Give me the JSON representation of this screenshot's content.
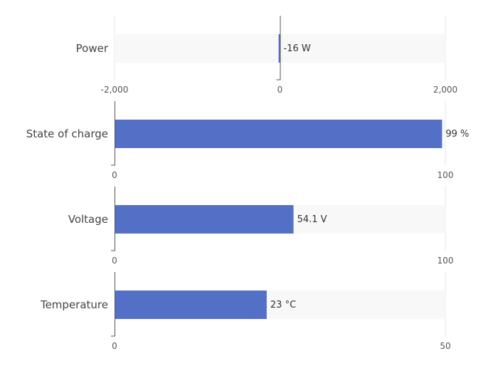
{
  "colors": {
    "bar": "#5470c6",
    "track": "#f8f8f8",
    "axis": "#555555",
    "grid": "#e0e6f1"
  },
  "chart_data": [
    {
      "type": "bar",
      "label": "Power",
      "value": -16,
      "value_label": "-16 W",
      "xlim": [
        -2000,
        2000
      ],
      "ticks": [
        "-2,000",
        "0",
        "2,000"
      ],
      "baseline": 0
    },
    {
      "type": "bar",
      "label": "State of charge",
      "value": 99,
      "value_label": "99 %",
      "xlim": [
        0,
        100
      ],
      "ticks": [
        "0",
        "100"
      ],
      "baseline": 0
    },
    {
      "type": "bar",
      "label": "Voltage",
      "value": 54.1,
      "value_label": "54.1 V",
      "xlim": [
        0,
        100
      ],
      "ticks": [
        "0",
        "100"
      ],
      "baseline": 0
    },
    {
      "type": "bar",
      "label": "Temperature",
      "value": 23,
      "value_label": "23 °C",
      "xlim": [
        0,
        50
      ],
      "ticks": [
        "0",
        "50"
      ],
      "baseline": 0
    }
  ]
}
